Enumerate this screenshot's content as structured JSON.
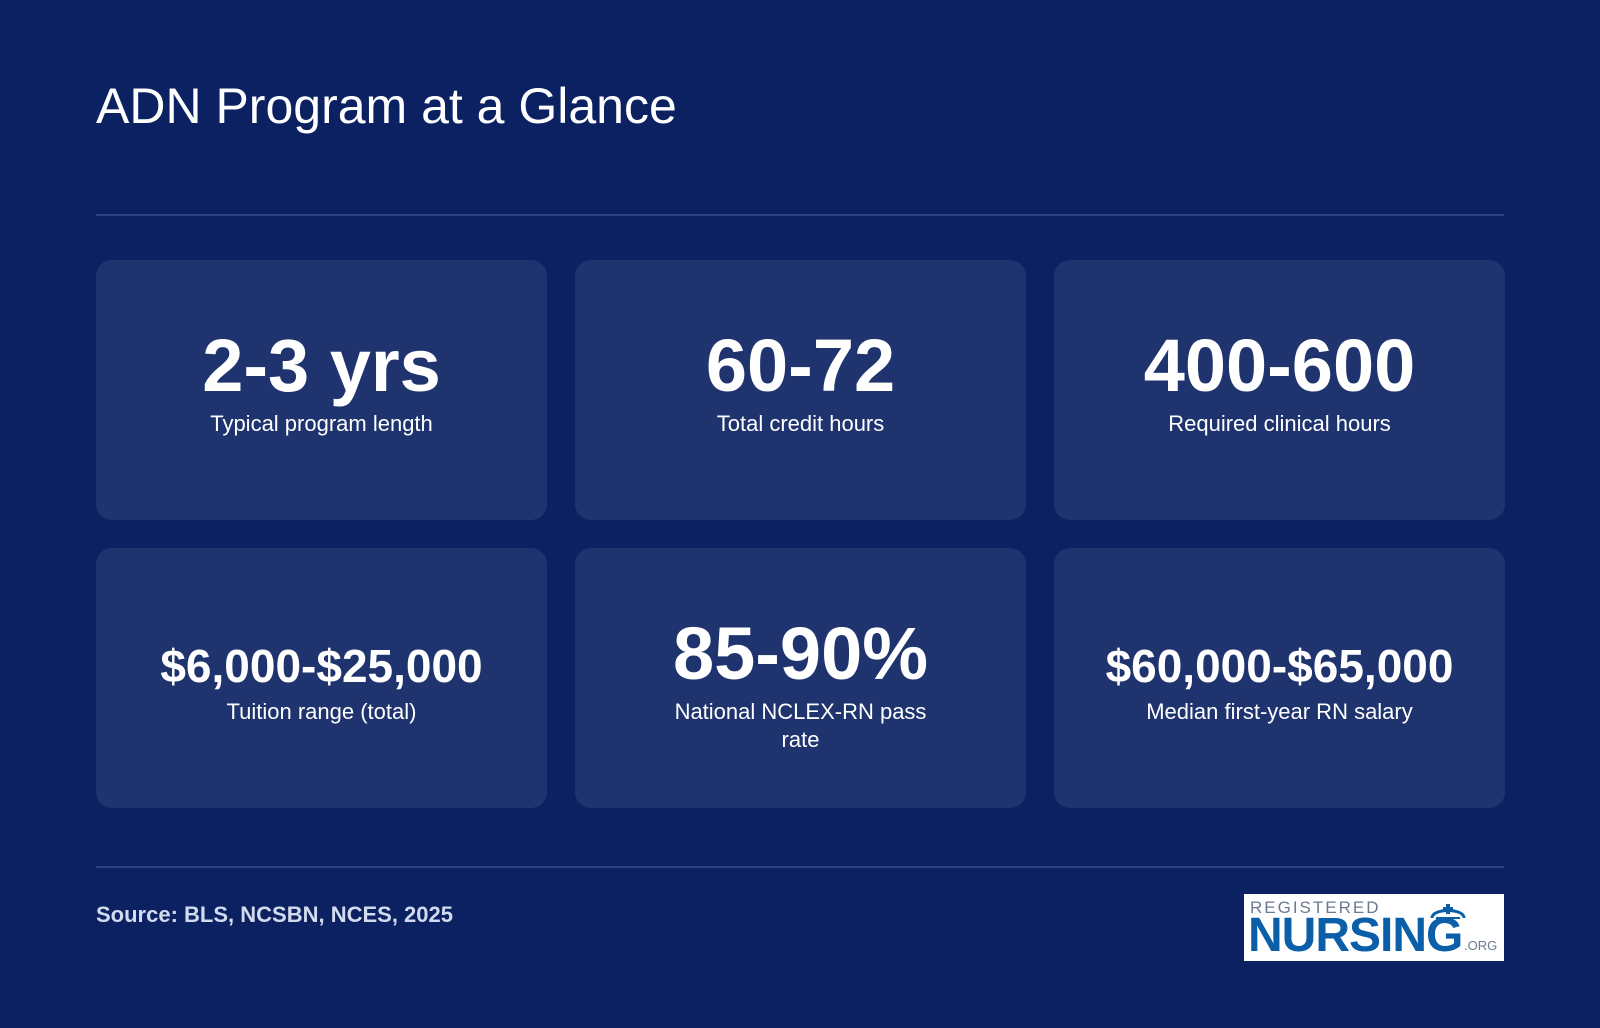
{
  "title": "ADN Program at a Glance",
  "stats": [
    {
      "value": "2-3 yrs",
      "label": "Typical program length"
    },
    {
      "value": "60-72",
      "label": "Total credit hours"
    },
    {
      "value": "400-600",
      "label": "Required clinical hours"
    },
    {
      "value": "$6,000-$25,000",
      "label": "Tuition range (total)"
    },
    {
      "value": "85-90%",
      "label": "National NCLEX-RN pass rate"
    },
    {
      "value": "$60,000-$65,000",
      "label": "Median first-year RN salary"
    }
  ],
  "source": "Source: BLS, NCSBN, NCES, 2025",
  "logo": {
    "top_text": "REGISTERED",
    "main_text": "NURSING",
    "suffix": ".ORG",
    "icon": "nurse-cap-icon"
  },
  "colors": {
    "background": "#0b2161",
    "card": "#1f346e",
    "logo_blue": "#0b5fa8"
  }
}
